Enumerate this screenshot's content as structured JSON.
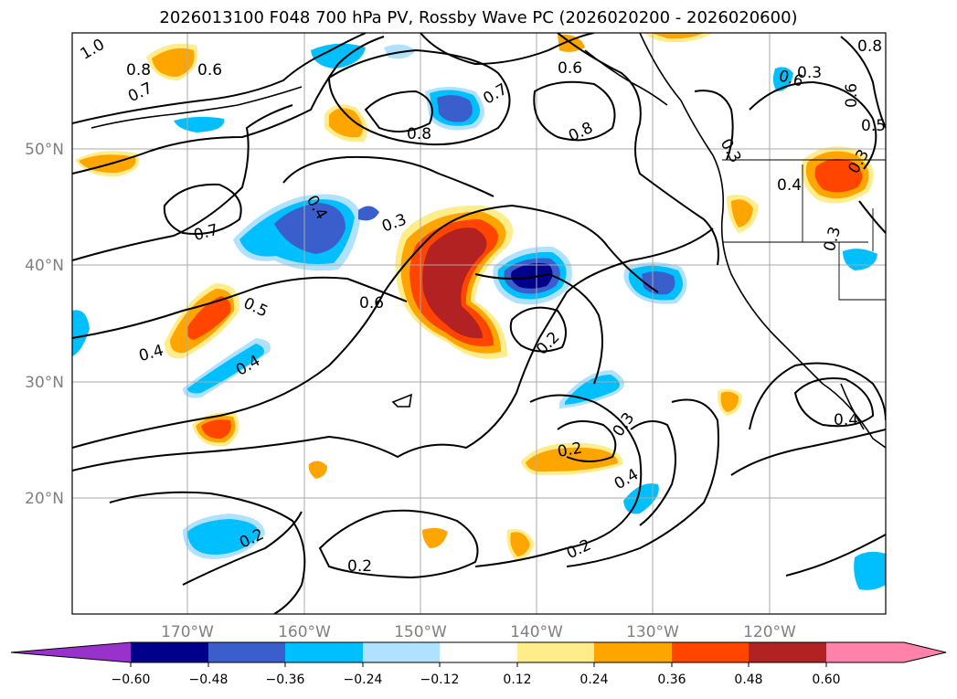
{
  "title": "2026013100 F048 700 hPa PV, Rossby Wave PC (2026020200 - 2026020600)",
  "lat_labels": [
    "50°N",
    "40°N",
    "30°N",
    "20°N"
  ],
  "lon_labels": [
    "170°W",
    "160°W",
    "150°W",
    "140°W",
    "130°W",
    "120°W"
  ],
  "colorbar": {
    "ticks": [
      "−0.60",
      "−0.48",
      "−0.36",
      "−0.24",
      "−0.12",
      "0.12",
      "0.24",
      "0.36",
      "0.48",
      "0.60"
    ],
    "colors": [
      "#9932cc",
      "#00008b",
      "#3a5fcd",
      "#00bfff",
      "#b0e2ff",
      "#ffffff",
      "#ffec8b",
      "#ffa500",
      "#ff4500",
      "#b22222",
      "#ff82ab"
    ]
  },
  "contour_labels": [
    "1.0",
    "0.8",
    "0.7",
    "0.6",
    "0.8",
    "0.6",
    "0.7",
    "0.8",
    "0.8",
    "0.6",
    "0.6",
    "0.5",
    "0.3",
    "0.7",
    "0.4",
    "0.3",
    "0.6",
    "0.5",
    "0.4",
    "0.4",
    "0.2",
    "0.3",
    "0.2",
    "0.4",
    "0.2",
    "0.2",
    "0.2",
    "0.4",
    "0.4",
    "0.3",
    "0.3",
    "0.3"
  ]
}
